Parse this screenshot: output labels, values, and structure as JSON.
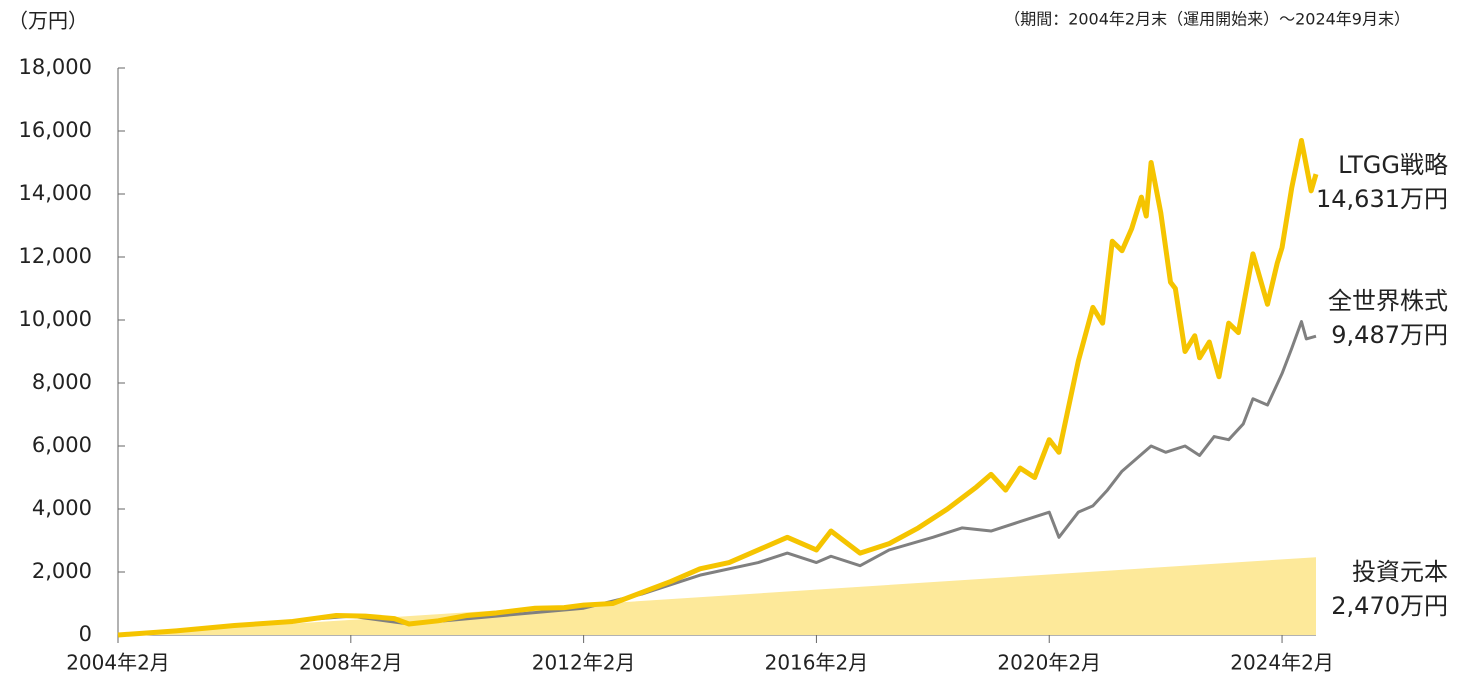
{
  "chart_data": {
    "type": "line",
    "y_unit": "（万円）",
    "note": "（期間：2004年2月末（運用開始来）～2024年9月末）",
    "xlim": [
      "2004-02",
      "2024-09"
    ],
    "xticks": [
      {
        "value": "2004-02",
        "label": "2004年2月"
      },
      {
        "value": "2008-02",
        "label": "2008年2月"
      },
      {
        "value": "2012-02",
        "label": "2012年2月"
      },
      {
        "value": "2016-02",
        "label": "2016年2月"
      },
      {
        "value": "2020-02",
        "label": "2020年2月"
      },
      {
        "value": "2024-02",
        "label": "2024年2月"
      }
    ],
    "ylim": [
      0,
      18000
    ],
    "yticks": [
      0,
      {
        "value": 2000,
        "label": "2,000"
      },
      {
        "value": 4000,
        "label": "4,000"
      },
      {
        "value": 6000,
        "label": "6,000"
      },
      {
        "value": 8000,
        "label": "8,000"
      },
      {
        "value": 10000,
        "label": "10,000"
      },
      {
        "value": 12000,
        "label": "12,000"
      },
      {
        "value": 14000,
        "label": "14,000"
      },
      {
        "value": 16000,
        "label": "16,000"
      },
      {
        "value": 18000,
        "label": "18,000"
      }
    ],
    "grid": false,
    "area": {
      "name": "投資元本",
      "end_label": "2,470万円",
      "color": "#fde99a",
      "label_color": "#f0a030",
      "x": [
        "2004-02",
        "2024-09"
      ],
      "values": [
        0,
        2470
      ]
    },
    "series": [
      {
        "name": "全世界株式",
        "end_label": "9,487万円",
        "color": "#808080",
        "label_color": "#808080",
        "width": 3,
        "x": [
          "2004-02",
          "2008-02",
          "2009-02",
          "2012-02",
          "2013-02",
          "2014-02",
          "2015-02",
          "2015-08",
          "2016-02",
          "2016-05",
          "2016-11",
          "2017-05",
          "2018-02",
          "2018-08",
          "2019-02",
          "2019-08",
          "2020-02",
          "2020-04",
          "2020-08",
          "2020-11",
          "2021-02",
          "2021-05",
          "2021-08",
          "2021-11",
          "2022-02",
          "2022-06",
          "2022-09",
          "2022-12",
          "2023-03",
          "2023-06",
          "2023-08",
          "2023-11",
          "2024-02",
          "2024-04",
          "2024-06",
          "2024-07",
          "2024-09"
        ],
        "values": [
          0,
          600,
          350,
          850,
          1300,
          1900,
          2300,
          2600,
          2300,
          2500,
          2200,
          2700,
          3100,
          3400,
          3300,
          3600,
          3900,
          3100,
          3900,
          4100,
          4600,
          5200,
          5600,
          6000,
          5800,
          6000,
          5700,
          6300,
          6200,
          6700,
          7500,
          7300,
          8300,
          9100,
          9950,
          9400,
          9487
        ]
      },
      {
        "name": "LTGG戦略",
        "end_label": "14,631万円",
        "color": "#f5c400",
        "label_color": "#8a6d00",
        "width": 5,
        "x": [
          "2004-02",
          "2005-02",
          "2006-02",
          "2007-02",
          "2007-11",
          "2008-05",
          "2008-11",
          "2009-02",
          "2009-08",
          "2010-02",
          "2010-08",
          "2011-04",
          "2011-10",
          "2012-02",
          "2012-08",
          "2013-02",
          "2013-08",
          "2014-02",
          "2014-08",
          "2015-02",
          "2015-08",
          "2016-02",
          "2016-05",
          "2016-11",
          "2017-05",
          "2017-11",
          "2018-05",
          "2018-11",
          "2019-02",
          "2019-05",
          "2019-08",
          "2019-11",
          "2020-02",
          "2020-04",
          "2020-08",
          "2020-11",
          "2021-01",
          "2021-03",
          "2021-05",
          "2021-07",
          "2021-09",
          "2021-10",
          "2021-11",
          "2022-01",
          "2022-03",
          "2022-04",
          "2022-06",
          "2022-08",
          "2022-09",
          "2022-11",
          "2023-01",
          "2023-03",
          "2023-05",
          "2023-08",
          "2023-11",
          "2024-01",
          "2024-02",
          "2024-04",
          "2024-06",
          "2024-08",
          "2024-09"
        ],
        "values": [
          0,
          130,
          300,
          430,
          620,
          600,
          520,
          350,
          450,
          620,
          700,
          850,
          870,
          950,
          1000,
          1350,
          1700,
          2100,
          2300,
          2700,
          3100,
          2700,
          3300,
          2600,
          2900,
          3400,
          4000,
          4700,
          5100,
          4600,
          5300,
          5000,
          6200,
          5800,
          8700,
          10400,
          9900,
          12500,
          12200,
          12900,
          13900,
          13300,
          15000,
          13400,
          11200,
          11000,
          9000,
          9500,
          8800,
          9300,
          8200,
          9900,
          9600,
          12100,
          10500,
          11800,
          12300,
          14200,
          15700,
          14100,
          14631
        ]
      }
    ]
  }
}
